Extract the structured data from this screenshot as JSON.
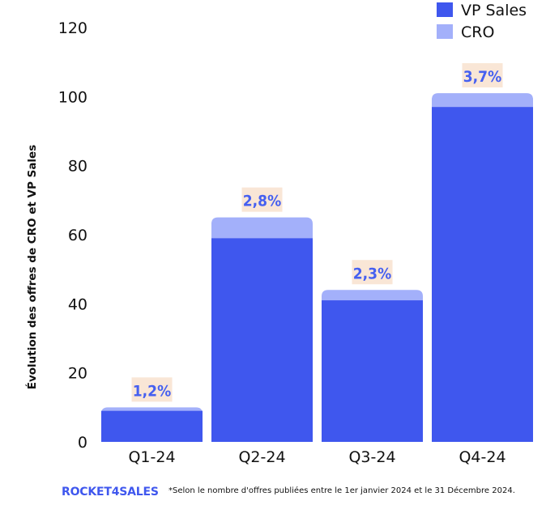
{
  "chart_data": {
    "type": "bar",
    "stacked": true,
    "categories": [
      "Q1-24",
      "Q2-24",
      "Q3-24",
      "Q4-24"
    ],
    "series": [
      {
        "name": "VP Sales",
        "values": [
          9,
          59,
          41,
          97
        ],
        "color": "#3f57ee"
      },
      {
        "name": "CRO",
        "values": [
          1,
          6,
          3,
          4
        ],
        "color": "#a3b0fa"
      }
    ],
    "data_labels": [
      "1,2%",
      "2,8%",
      "2,3%",
      "3,7%"
    ],
    "label_bg_color": "#f9e6d6",
    "ylabel": "Évolution des offres de CRO et VP Sales",
    "xlabel": "",
    "ylim": [
      0,
      120
    ],
    "yticks": [
      0,
      20,
      40,
      60,
      80,
      100,
      120
    ],
    "legend_position": "top-right"
  },
  "footer": {
    "brand": "ROCKET4SALES",
    "note": "*Selon le nombre d'offres publiées entre le 1er janvier 2024 et le 31 Décembre 2024."
  }
}
